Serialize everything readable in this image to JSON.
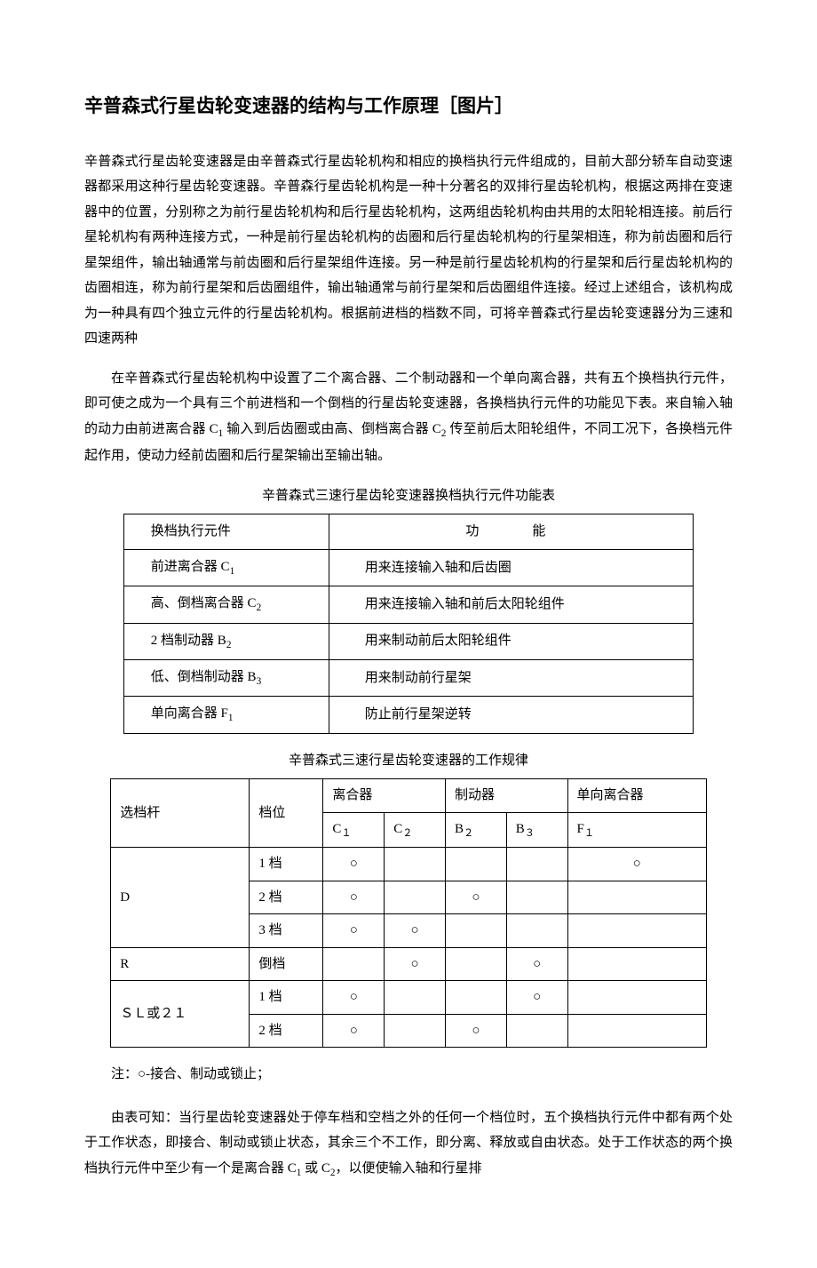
{
  "title": "辛普森式行星齿轮变速器的结构与工作原理［图片］",
  "para1": "辛普森式行星齿轮变速器是由辛普森式行星齿轮机构和相应的换档执行元件组成的，目前大部分轿车自动变速器都采用这种行星齿轮变速器。辛普森行星齿轮机构是一种十分著名的双排行星齿轮机构，根据这两排在变速器中的位置，分别称之为前行星齿轮机构和后行星齿轮机构，这两组齿轮机构由共用的太阳轮相连接。前后行星轮机构有两种连接方式，一种是前行星齿轮机构的齿圈和后行星齿轮机构的行星架相连，称为前齿圈和后行星架组件，输出轴通常与前齿圈和后行星架组件连接。另一种是前行星齿轮机构的行星架和后行星齿轮机构的齿圈相连，称为前行星架和后齿圈组件，输出轴通常与前行星架和后齿圈组件连接。经过上述组合，该机构成为一种具有四个独立元件的行星齿轮机构。根据前进档的档数不同，可将辛普森式行星齿轮变速器分为三速和四速两种",
  "para2_pre": "在辛普森式行星齿轮机构中设置了二个离合器、二个制动器和一个单向离合器，共有五个换档执行元件，即可使之成为一个具有三个前进档和一个倒档的行星齿轮变速器，各换档执行元件的功能见下表。来自输入轴的动力由前进离合器 C",
  "para2_mid1": " 输入到后齿圈或由高、倒档离合器 C",
  "para2_post": " 传至前后太阳轮组件，不同工况下，各换档元件起作用，使动力经前齿圈和后行星架输出至输出轴。",
  "table1_caption": "辛普森式三速行星齿轮变速器换档执行元件功能表",
  "table1": {
    "headers": {
      "col1": "换档执行元件",
      "col2": "功能"
    },
    "rows": [
      {
        "c1_pre": "前进离合器 C",
        "c1_sub": "1",
        "c2": "用来连接输入轴和后齿圈"
      },
      {
        "c1_pre": "高、倒档离合器 C",
        "c1_sub": "2",
        "c2": "用来连接输入轴和前后太阳轮组件"
      },
      {
        "c1_pre": "2 档制动器 B",
        "c1_sub": "2",
        "c2": "用来制动前后太阳轮组件"
      },
      {
        "c1_pre": "低、倒档制动器 B",
        "c1_sub": "3",
        "c2": "用来制动前行星架"
      },
      {
        "c1_pre": "单向离合器 F",
        "c1_sub": "1",
        "c2": "防止前行星架逆转"
      }
    ]
  },
  "table2_caption": "辛普森式三速行星齿轮变速器的工作规律",
  "table2": {
    "headers": {
      "lever": "选档杆",
      "gear": "档位",
      "clutch": "离合器",
      "brake": "制动器",
      "oneway": "单向离合器"
    },
    "subheaders": {
      "c1": "C",
      "c1s": "１",
      "c2": "C",
      "c2s": "２",
      "b2": "B",
      "b2s": "２",
      "b3": "B",
      "b3s": "３",
      "f1": "F",
      "f1s": "１"
    },
    "rows": [
      {
        "lever": "D",
        "rowspan": 3,
        "gear": "1 档",
        "c1": "○",
        "c2": "",
        "b2": "",
        "b3": "",
        "f1": "○"
      },
      {
        "lever": "",
        "gear": "2 档",
        "c1": "○",
        "c2": "",
        "b2": "○",
        "b3": "",
        "f1": ""
      },
      {
        "lever": "",
        "gear": "3 档",
        "c1": "○",
        "c2": "○",
        "b2": "",
        "b3": "",
        "f1": ""
      },
      {
        "lever": "R",
        "rowspan": 1,
        "gear": "倒档",
        "c1": "",
        "c2": "○",
        "b2": "",
        "b3": "○",
        "f1": ""
      },
      {
        "lever": "ＳＬ或２１",
        "rowspan": 2,
        "gear": "1 档",
        "c1": "○",
        "c2": "",
        "b2": "",
        "b3": "○",
        "f1": ""
      },
      {
        "lever": "",
        "gear": "2 档",
        "c1": "○",
        "c2": "",
        "b2": "○",
        "b3": "",
        "f1": ""
      }
    ]
  },
  "note": "注：○-接合、制动或锁止；",
  "para3_pre": "由表可知：当行星齿轮变速器处于停车档和空档之外的任何一个档位时，五个换档执行元件中都有两个处于工作状态，即接合、制动或锁止状态，其余三个不工作，即分离、释放或自由状态。处于工作状态的两个换档执行元件中至少有一个是离合器 C",
  "para3_mid": " 或 C",
  "para3_post": "，以便使输入轴和行星排",
  "subs": {
    "one": "1",
    "two": "2"
  }
}
